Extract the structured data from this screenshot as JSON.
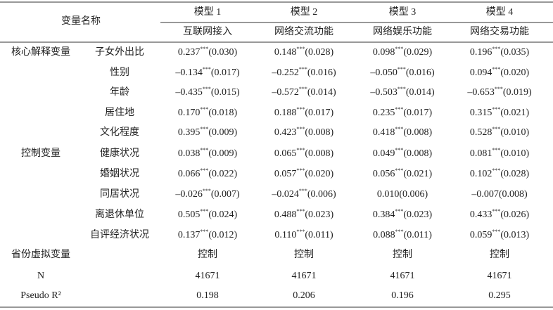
{
  "header": {
    "title": "变量名称",
    "models": [
      "模型 1",
      "模型 2",
      "模型 3",
      "模型 4"
    ],
    "functions": [
      "互联网接入",
      "网络交流功能",
      "网络娱乐功能",
      "网络交易功能"
    ]
  },
  "rows": [
    {
      "group": "核心解释变量",
      "name": "子女外出比",
      "cells": [
        {
          "coef": "0.237",
          "stars": "***",
          "se": "(0.030)"
        },
        {
          "coef": "0.148",
          "stars": "***",
          "se": "(0.028)"
        },
        {
          "coef": "0.098",
          "stars": "***",
          "se": "(0.029)"
        },
        {
          "coef": "0.196",
          "stars": "***",
          "se": "(0.035)"
        }
      ]
    },
    {
      "name": "性别",
      "cells": [
        {
          "coef": "–0.134",
          "stars": "***",
          "se": "(0.017)"
        },
        {
          "coef": "–0.252",
          "stars": "***",
          "se": "(0.016)"
        },
        {
          "coef": "–0.050",
          "stars": "***",
          "se": "(0.016)"
        },
        {
          "coef": "0.094",
          "stars": "***",
          "se": "(0.020)"
        }
      ]
    },
    {
      "name": "年龄",
      "cells": [
        {
          "coef": "–0.435",
          "stars": "***",
          "se": "(0.015)"
        },
        {
          "coef": "–0.572",
          "stars": "***",
          "se": "(0.014)"
        },
        {
          "coef": "–0.503",
          "stars": "***",
          "se": "(0.014)"
        },
        {
          "coef": "–0.653",
          "stars": "***",
          "se": "(0.019)"
        }
      ]
    },
    {
      "name": "居住地",
      "cells": [
        {
          "coef": "0.170",
          "stars": "***",
          "se": "(0.018)"
        },
        {
          "coef": "0.188",
          "stars": "***",
          "se": "(0.017)"
        },
        {
          "coef": "0.235",
          "stars": "***",
          "se": "(0.017)"
        },
        {
          "coef": "0.315",
          "stars": "***",
          "se": "(0.021)"
        }
      ]
    },
    {
      "name": "文化程度",
      "cells": [
        {
          "coef": "0.395",
          "stars": "***",
          "se": "(0.009)"
        },
        {
          "coef": "0.423",
          "stars": "***",
          "se": "(0.008)"
        },
        {
          "coef": "0.418",
          "stars": "***",
          "se": "(0.008)"
        },
        {
          "coef": "0.528",
          "stars": "***",
          "se": "(0.010)"
        }
      ]
    },
    {
      "group": "控制变量",
      "name": "健康状况",
      "cells": [
        {
          "coef": "0.038",
          "stars": "***",
          "se": "(0.009)"
        },
        {
          "coef": "0.065",
          "stars": "***",
          "se": "(0.008)"
        },
        {
          "coef": "0.049",
          "stars": "***",
          "se": "(0.008)"
        },
        {
          "coef": "0.081",
          "stars": "***",
          "se": "(0.010)"
        }
      ]
    },
    {
      "name": "婚姻状况",
      "cells": [
        {
          "coef": "0.066",
          "stars": "***",
          "se": "(0.022)"
        },
        {
          "coef": "0.057",
          "stars": "***",
          "se": "(0.020)"
        },
        {
          "coef": "0.056",
          "stars": "***",
          "se": "(0.021)"
        },
        {
          "coef": "0.102",
          "stars": "***",
          "se": "(0.028)"
        }
      ]
    },
    {
      "name": "同居状况",
      "cells": [
        {
          "coef": "–0.026",
          "stars": "***",
          "se": "(0.007)"
        },
        {
          "coef": "–0.024",
          "stars": "***",
          "se": "(0.006)"
        },
        {
          "coef": "0.010",
          "se": "(0.006)"
        },
        {
          "coef": "–0.007",
          "se": "(0.008)"
        }
      ]
    },
    {
      "name": "离退休单位",
      "cells": [
        {
          "coef": "0.505",
          "stars": "***",
          "se": "(0.024)"
        },
        {
          "coef": "0.488",
          "stars": "***",
          "se": "(0.023)"
        },
        {
          "coef": "0.384",
          "stars": "***",
          "se": "(0.023)"
        },
        {
          "coef": "0.433",
          "stars": "***",
          "se": "(0.026)"
        }
      ]
    },
    {
      "name": "自评经济状况",
      "cells": [
        {
          "coef": "0.137",
          "stars": "***",
          "se": "(0.012)"
        },
        {
          "coef": "0.110",
          "stars": "***",
          "se": "(0.011)"
        },
        {
          "coef": "0.088",
          "stars": "***",
          "se": "(0.011)"
        },
        {
          "coef": "0.059",
          "stars": "***",
          "se": "(0.013)"
        }
      ]
    },
    {
      "group": "省份虚拟变量",
      "cells": [
        "控制",
        "控制",
        "控制",
        "控制"
      ]
    },
    {
      "group": "N",
      "cells": [
        "41671",
        "41671",
        "41671",
        "41671"
      ]
    },
    {
      "group": "Pseudo R²",
      "cells": [
        "0.198",
        "0.206",
        "0.196",
        "0.295"
      ]
    }
  ]
}
